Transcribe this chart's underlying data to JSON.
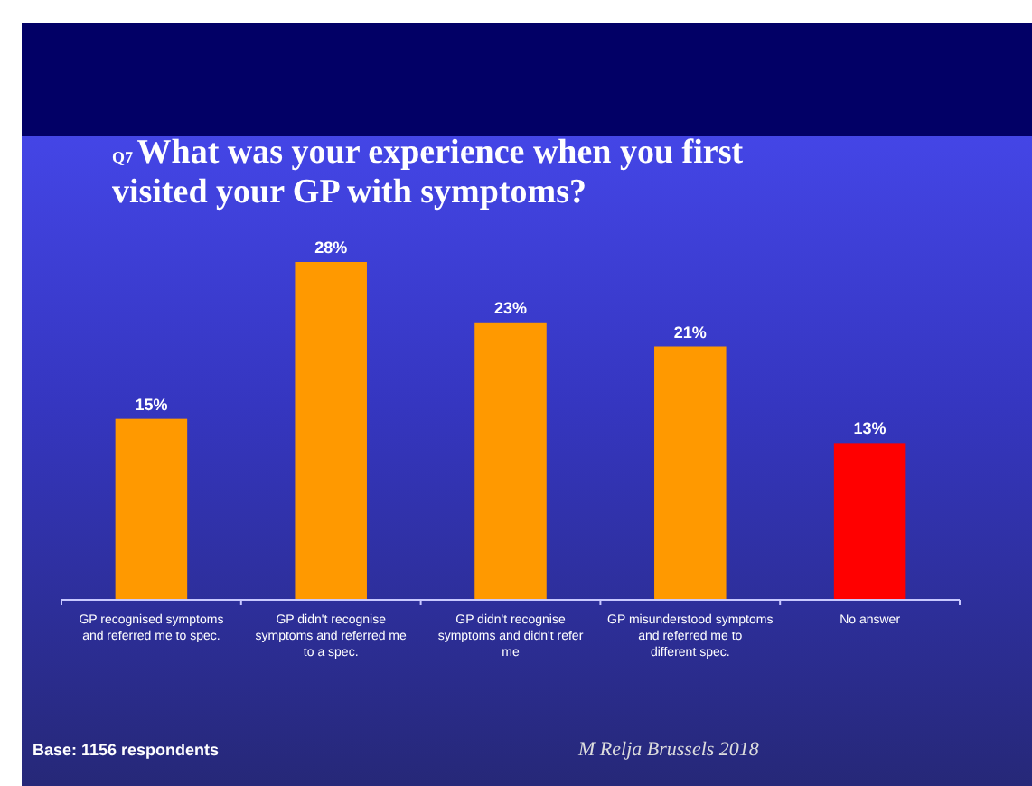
{
  "chart_data": {
    "type": "bar",
    "title": "What was your experience when you first visited your GP with symptoms?",
    "categories": [
      "GP recognised symptoms and referred me to spec.",
      "GP didn't recognise symptoms and referred me to a spec.",
      "GP didn't recognise symptoms and didn't refer me",
      "GP misunderstood symptoms and referred me to different spec.",
      "No answer"
    ],
    "values": [
      15,
      28,
      23,
      21,
      13
    ],
    "colors": [
      "#ff9900",
      "#ff9900",
      "#ff9900",
      "#ff9900",
      "#ff0000"
    ],
    "value_labels": [
      "15%",
      "28%",
      "23%",
      "21%",
      "13%"
    ],
    "annotations": [
      "Q7",
      "Base: 1156 respondents",
      "M Relja Brussels 2018"
    ]
  }
}
